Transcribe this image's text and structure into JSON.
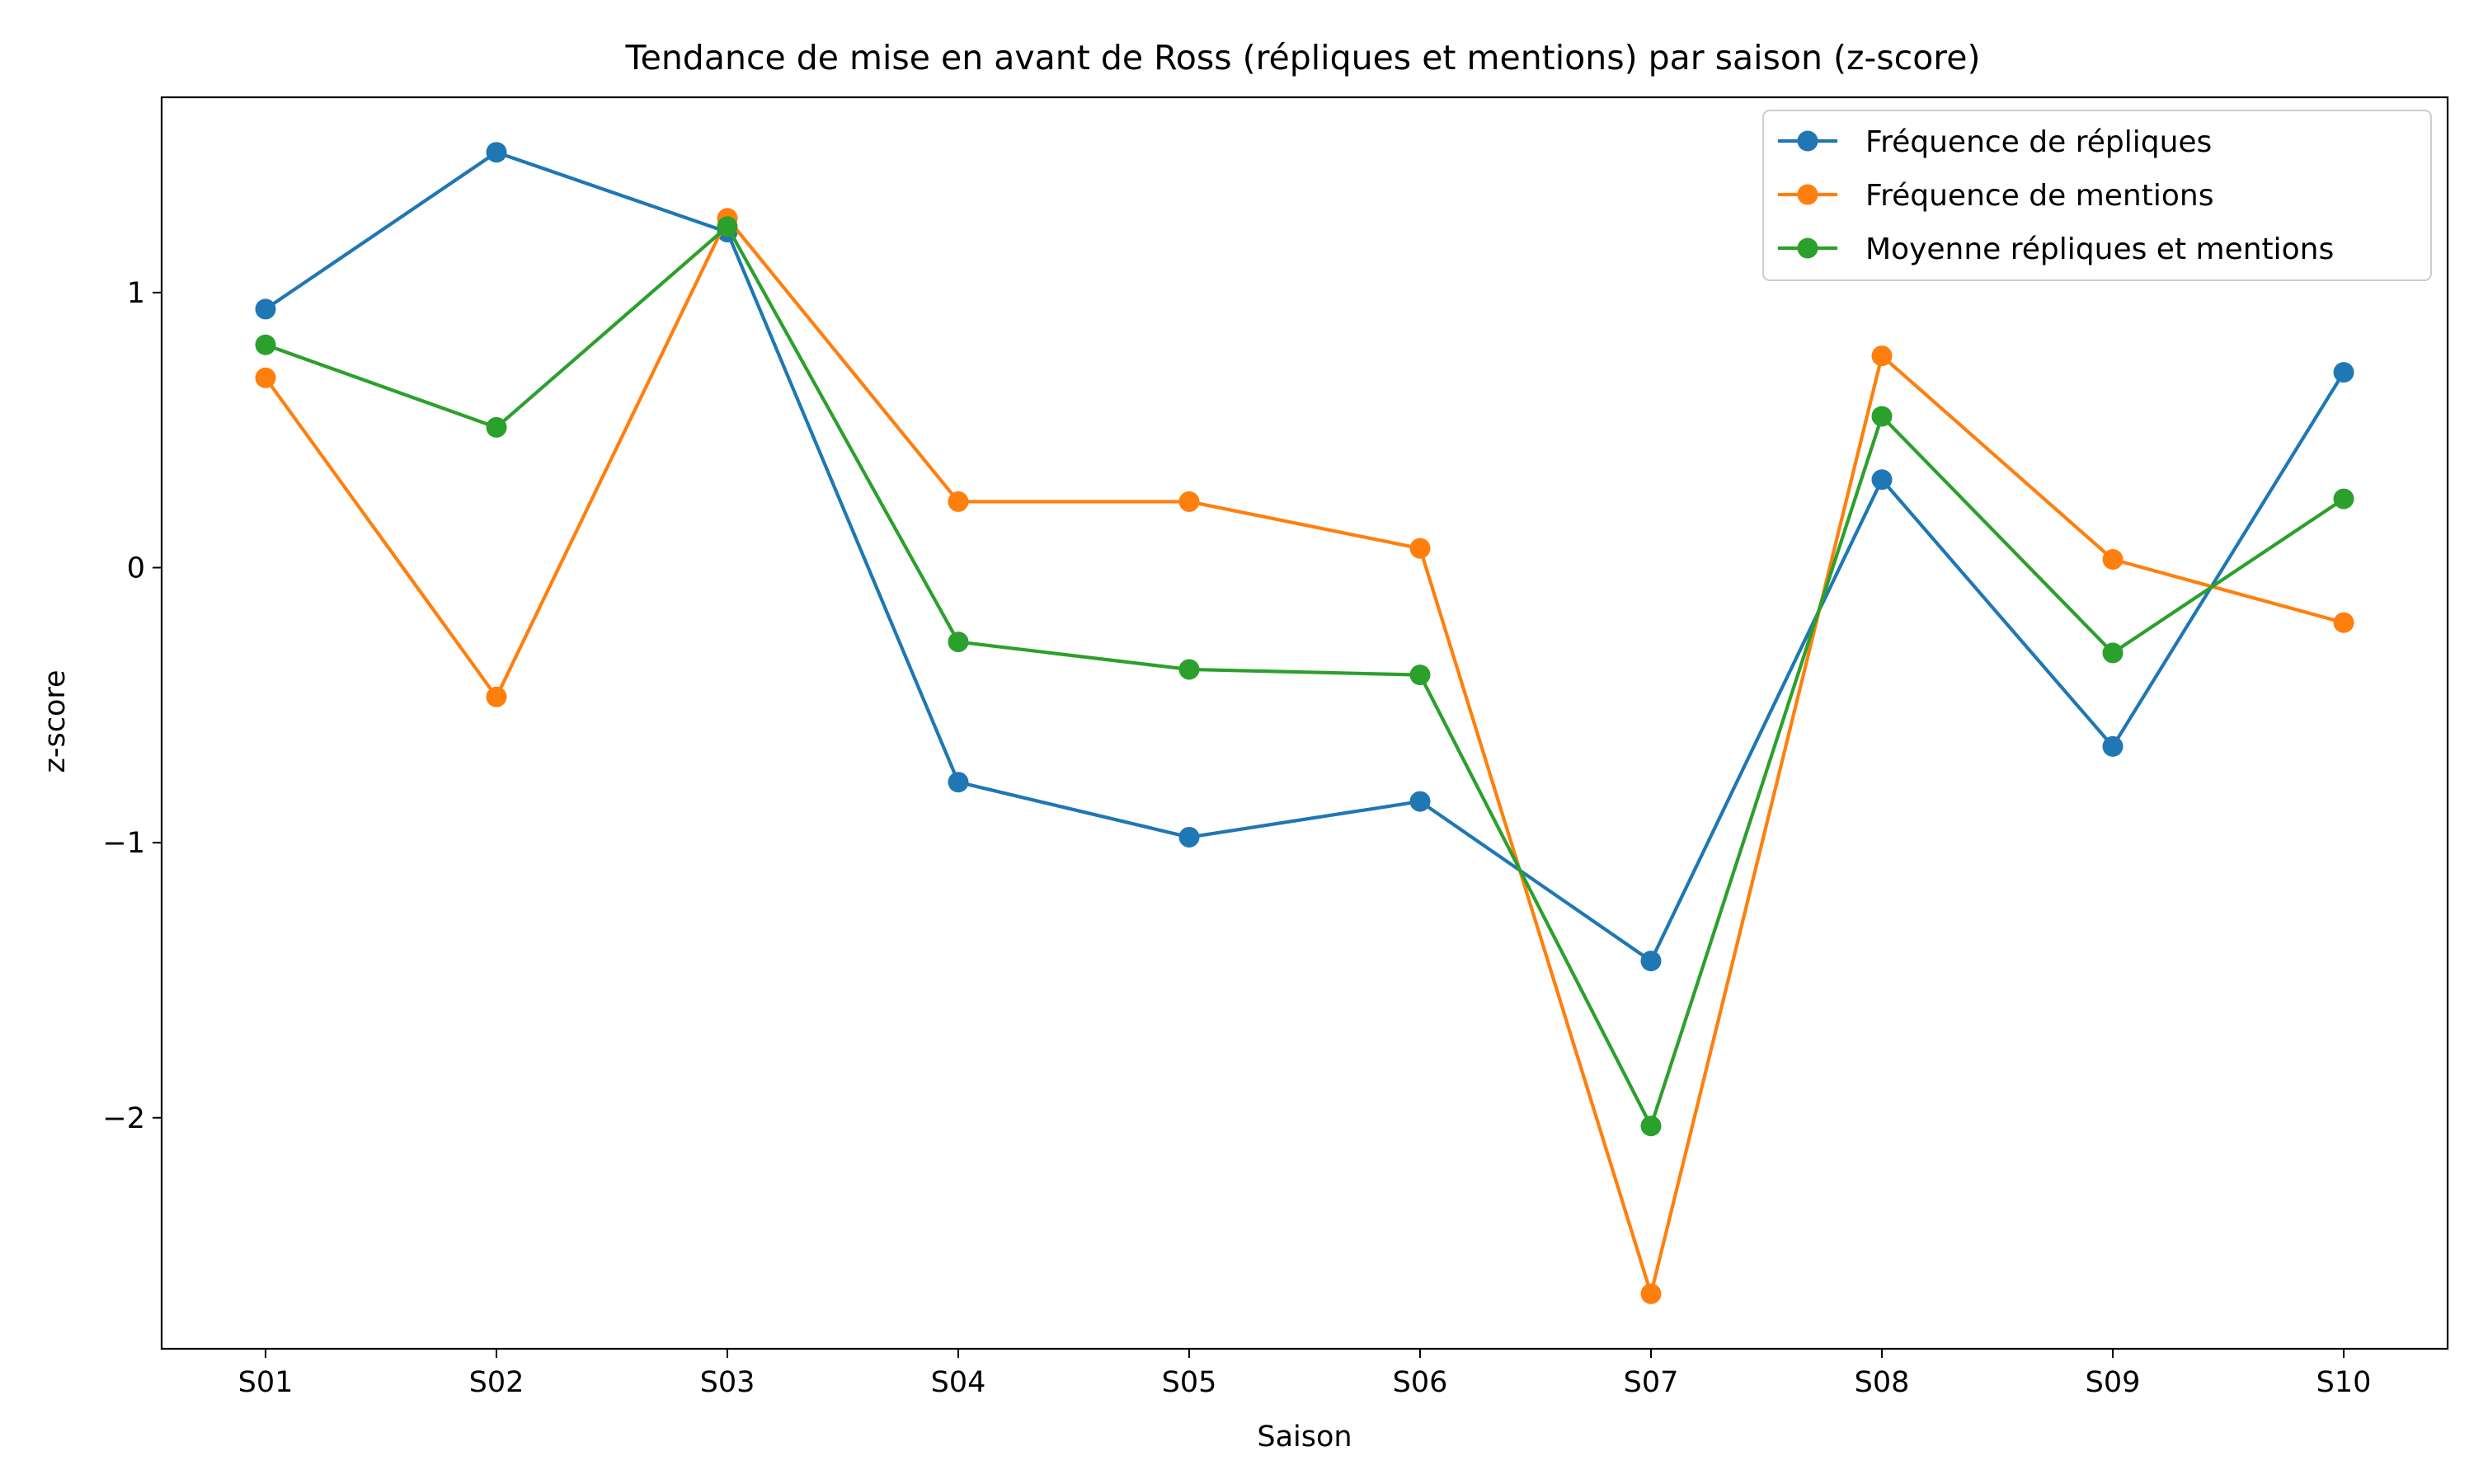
{
  "chart_data": {
    "type": "line",
    "title": "Tendance de mise en avant de Ross (répliques et mentions) par saison (z-score)",
    "xlabel": "Saison",
    "ylabel": "z-score",
    "categories": [
      "S01",
      "S02",
      "S03",
      "S04",
      "S05",
      "S06",
      "S07",
      "S08",
      "S09",
      "S10"
    ],
    "ylim": [
      -2.84,
      1.71
    ],
    "yticks": [
      1,
      0,
      -1,
      -2
    ],
    "ytick_labels": [
      "1",
      "0",
      "−1",
      "−2"
    ],
    "grid": false,
    "legend_position": "top-right",
    "series": [
      {
        "name": "Fréquence de répliques",
        "color": "#1f77b4",
        "values": [
          0.94,
          1.51,
          1.22,
          -0.78,
          -0.98,
          -0.85,
          -1.43,
          0.32,
          -0.65,
          0.71
        ]
      },
      {
        "name": "Fréquence de mentions",
        "color": "#ff7f0e",
        "values": [
          0.69,
          -0.47,
          1.27,
          0.24,
          0.24,
          0.07,
          -2.64,
          0.77,
          0.03,
          -0.2
        ]
      },
      {
        "name": "Moyenne répliques et mentions",
        "color": "#2ca02c",
        "values": [
          0.81,
          0.51,
          1.24,
          -0.27,
          -0.37,
          -0.39,
          -2.03,
          0.55,
          -0.31,
          0.25
        ]
      }
    ]
  }
}
